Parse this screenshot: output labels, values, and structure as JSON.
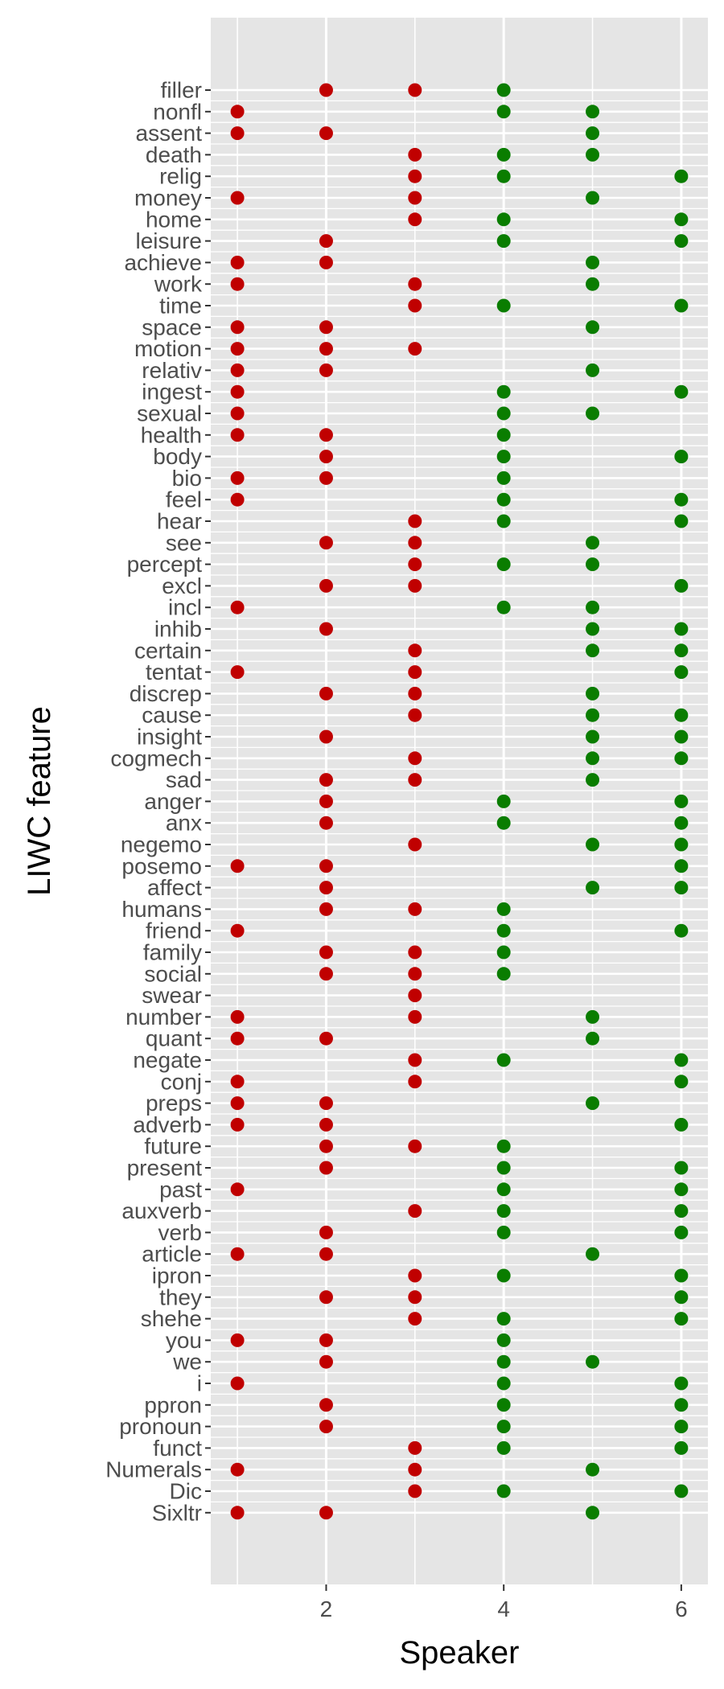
{
  "chart_data": {
    "type": "scatter",
    "xlabel": "Speaker",
    "ylabel": "LIWC feature",
    "xlim": [
      0.7,
      6.3
    ],
    "x_ticks": [
      2,
      4,
      6
    ],
    "grid": true,
    "legend": "none",
    "categories": [
      "filler",
      "nonfl",
      "assent",
      "death",
      "relig",
      "money",
      "home",
      "leisure",
      "achieve",
      "work",
      "time",
      "space",
      "motion",
      "relativ",
      "ingest",
      "sexual",
      "health",
      "body",
      "bio",
      "feel",
      "hear",
      "see",
      "percept",
      "excl",
      "incl",
      "inhib",
      "certain",
      "tentat",
      "discrep",
      "cause",
      "insight",
      "cogmech",
      "sad",
      "anger",
      "anx",
      "negemo",
      "posemo",
      "affect",
      "humans",
      "friend",
      "family",
      "social",
      "swear",
      "number",
      "quant",
      "negate",
      "conj",
      "preps",
      "adverb",
      "future",
      "present",
      "past",
      "auxverb",
      "verb",
      "article",
      "ipron",
      "they",
      "shehe",
      "you",
      "we",
      "i",
      "ppron",
      "pronoun",
      "funct",
      "Numerals",
      "Dic",
      "Sixltr"
    ],
    "colors": {
      "speakers_1_3": "#c00000",
      "speakers_4_6": "#0a7d00",
      "panel": "#e5e5e5",
      "grid": "#ffffff"
    },
    "rows": {
      "filler": [
        2,
        3,
        4
      ],
      "nonfl": [
        1,
        4,
        5
      ],
      "assent": [
        1,
        2,
        5
      ],
      "death": [
        3,
        4,
        5
      ],
      "relig": [
        3,
        4,
        6
      ],
      "money": [
        1,
        3,
        5
      ],
      "home": [
        3,
        4,
        6
      ],
      "leisure": [
        2,
        4,
        6
      ],
      "achieve": [
        1,
        2,
        5
      ],
      "work": [
        1,
        3,
        5
      ],
      "time": [
        3,
        4,
        6
      ],
      "space": [
        1,
        2,
        5
      ],
      "motion": [
        1,
        2,
        3
      ],
      "relativ": [
        1,
        2,
        5
      ],
      "ingest": [
        1,
        4,
        6
      ],
      "sexual": [
        1,
        4,
        5
      ],
      "health": [
        1,
        2,
        4
      ],
      "body": [
        2,
        4,
        6
      ],
      "bio": [
        1,
        2,
        4
      ],
      "feel": [
        1,
        4,
        6
      ],
      "hear": [
        3,
        4,
        6
      ],
      "see": [
        2,
        3,
        5
      ],
      "percept": [
        3,
        4,
        5
      ],
      "excl": [
        2,
        3,
        6
      ],
      "incl": [
        1,
        4,
        5
      ],
      "inhib": [
        2,
        5,
        6
      ],
      "certain": [
        3,
        5,
        6
      ],
      "tentat": [
        1,
        3,
        6
      ],
      "discrep": [
        2,
        3,
        5
      ],
      "cause": [
        3,
        5,
        6
      ],
      "insight": [
        2,
        5,
        6
      ],
      "cogmech": [
        3,
        5,
        6
      ],
      "sad": [
        2,
        3,
        5
      ],
      "anger": [
        2,
        4,
        6
      ],
      "anx": [
        2,
        4,
        6
      ],
      "negemo": [
        3,
        5,
        6
      ],
      "posemo": [
        1,
        2,
        6
      ],
      "affect": [
        2,
        5,
        6
      ],
      "humans": [
        2,
        3,
        4
      ],
      "friend": [
        1,
        4,
        6
      ],
      "family": [
        2,
        3,
        4
      ],
      "social": [
        2,
        3,
        4
      ],
      "swear": [
        3
      ],
      "number": [
        1,
        3,
        5
      ],
      "quant": [
        1,
        2,
        5
      ],
      "negate": [
        3,
        4,
        6
      ],
      "conj": [
        1,
        3,
        6
      ],
      "preps": [
        1,
        2,
        5
      ],
      "adverb": [
        1,
        2,
        6
      ],
      "future": [
        2,
        3,
        4
      ],
      "present": [
        2,
        4,
        6
      ],
      "past": [
        1,
        4,
        6
      ],
      "auxverb": [
        3,
        4,
        6
      ],
      "verb": [
        2,
        4,
        6
      ],
      "article": [
        1,
        2,
        5
      ],
      "ipron": [
        3,
        4,
        6
      ],
      "they": [
        2,
        3,
        6
      ],
      "shehe": [
        3,
        4,
        6
      ],
      "you": [
        1,
        2,
        4
      ],
      "we": [
        2,
        4,
        5
      ],
      "i": [
        1,
        4,
        6
      ],
      "ppron": [
        2,
        4,
        6
      ],
      "pronoun": [
        2,
        4,
        6
      ],
      "funct": [
        3,
        4,
        6
      ],
      "Numerals": [
        1,
        3,
        5
      ],
      "Dic": [
        3,
        4,
        6
      ],
      "Sixltr": [
        1,
        2,
        5
      ]
    }
  }
}
